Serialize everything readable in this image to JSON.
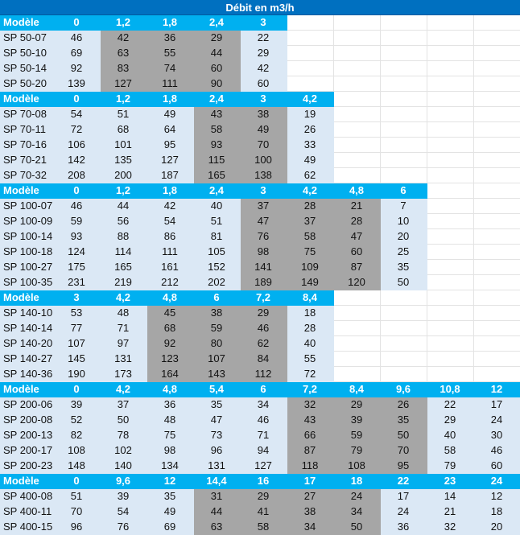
{
  "title": "Débit en m3/h",
  "colors": {
    "title_bg": "#0070c0",
    "header_bg": "#00b0f0",
    "light_cell": "#dbe8f5",
    "grey_cell": "#a6a6a6"
  },
  "sections": [
    {
      "headers": [
        "Modèle",
        "0",
        "1,2",
        "1,8",
        "2,4",
        "3"
      ],
      "gray_cols": [
        2,
        3,
        4
      ],
      "rows": [
        [
          "SP 50-07",
          "46",
          "42",
          "36",
          "29",
          "22"
        ],
        [
          "SP 50-10",
          "69",
          "63",
          "55",
          "44",
          "29"
        ],
        [
          "SP 50-14",
          "92",
          "83",
          "74",
          "60",
          "42"
        ],
        [
          "SP 50-20",
          "139",
          "127",
          "111",
          "90",
          "60"
        ]
      ]
    },
    {
      "headers": [
        "Modèle",
        "0",
        "1,2",
        "1,8",
        "2,4",
        "3",
        "4,2"
      ],
      "gray_cols": [
        4,
        5
      ],
      "rows": [
        [
          "SP 70-08",
          "54",
          "51",
          "49",
          "43",
          "38",
          "19"
        ],
        [
          "SP 70-11",
          "72",
          "68",
          "64",
          "58",
          "49",
          "26"
        ],
        [
          "SP 70-16",
          "106",
          "101",
          "95",
          "93",
          "70",
          "33"
        ],
        [
          "SP 70-21",
          "142",
          "135",
          "127",
          "115",
          "100",
          "49"
        ],
        [
          "SP 70-32",
          "208",
          "200",
          "187",
          "165",
          "138",
          "62"
        ]
      ]
    },
    {
      "headers": [
        "Modèle",
        "0",
        "1,2",
        "1,8",
        "2,4",
        "3",
        "4,2",
        "4,8",
        "6"
      ],
      "gray_cols": [
        5,
        6,
        7
      ],
      "rows": [
        [
          "SP 100-07",
          "46",
          "44",
          "42",
          "40",
          "37",
          "28",
          "21",
          "7"
        ],
        [
          "SP 100-09",
          "59",
          "56",
          "54",
          "51",
          "47",
          "37",
          "28",
          "10"
        ],
        [
          "SP 100-14",
          "93",
          "88",
          "86",
          "81",
          "76",
          "58",
          "47",
          "20"
        ],
        [
          "SP 100-18",
          "124",
          "114",
          "111",
          "105",
          "98",
          "75",
          "60",
          "25"
        ],
        [
          "SP 100-27",
          "175",
          "165",
          "161",
          "152",
          "141",
          "109",
          "87",
          "35"
        ],
        [
          "SP 100-35",
          "231",
          "219",
          "212",
          "202",
          "189",
          "149",
          "120",
          "50"
        ]
      ]
    },
    {
      "headers": [
        "Modèle",
        "3",
        "4,2",
        "4,8",
        "6",
        "7,2",
        "8,4"
      ],
      "gray_cols": [
        3,
        4,
        5
      ],
      "rows": [
        [
          "SP 140-10",
          "53",
          "48",
          "45",
          "38",
          "29",
          "18"
        ],
        [
          "SP 140-14",
          "77",
          "71",
          "68",
          "59",
          "46",
          "28"
        ],
        [
          "SP 140-20",
          "107",
          "97",
          "92",
          "80",
          "62",
          "40"
        ],
        [
          "SP 140-27",
          "145",
          "131",
          "123",
          "107",
          "84",
          "55"
        ],
        [
          "SP 140-36",
          "190",
          "173",
          "164",
          "143",
          "112",
          "72"
        ]
      ]
    },
    {
      "headers": [
        "Modèle",
        "0",
        "4,2",
        "4,8",
        "5,4",
        "6",
        "7,2",
        "8,4",
        "9,6",
        "10,8",
        "12"
      ],
      "gray_cols": [
        6,
        7,
        8
      ],
      "rows": [
        [
          "SP 200-06",
          "39",
          "37",
          "36",
          "35",
          "34",
          "32",
          "29",
          "26",
          "22",
          "17"
        ],
        [
          "SP 200-08",
          "52",
          "50",
          "48",
          "47",
          "46",
          "43",
          "39",
          "35",
          "29",
          "24"
        ],
        [
          "SP 200-13",
          "82",
          "78",
          "75",
          "73",
          "71",
          "66",
          "59",
          "50",
          "40",
          "30"
        ],
        [
          "SP 200-17",
          "108",
          "102",
          "98",
          "96",
          "94",
          "87",
          "79",
          "70",
          "58",
          "46"
        ],
        [
          "SP 200-23",
          "148",
          "140",
          "134",
          "131",
          "127",
          "118",
          "108",
          "95",
          "79",
          "60"
        ]
      ]
    },
    {
      "headers": [
        "Modèle",
        "0",
        "9,6",
        "12",
        "14,4",
        "16",
        "17",
        "18",
        "22",
        "23",
        "24"
      ],
      "gray_cols": [
        4,
        5,
        6,
        7
      ],
      "rows": [
        [
          "SP 400-08",
          "51",
          "39",
          "35",
          "31",
          "29",
          "27",
          "24",
          "17",
          "14",
          "12"
        ],
        [
          "SP 400-11",
          "70",
          "54",
          "49",
          "44",
          "41",
          "38",
          "34",
          "24",
          "21",
          "18"
        ],
        [
          "SP 400-15",
          "96",
          "76",
          "69",
          "63",
          "58",
          "34",
          "50",
          "36",
          "32",
          "20"
        ]
      ]
    }
  ]
}
